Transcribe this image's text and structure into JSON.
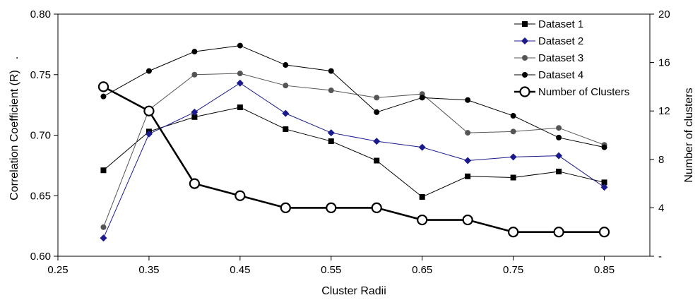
{
  "chart_data": {
    "type": "line",
    "xlabel": "Cluster Radii",
    "ylabel": "Correlation Coefficient (R)",
    "ylabel_suffix": ".",
    "y2label": "Number of clusters",
    "xlim": [
      0.25,
      0.9
    ],
    "ylim": [
      0.6,
      0.8
    ],
    "y2lim": [
      0,
      20
    ],
    "xticks": [
      "0.25",
      "0.35",
      "0.45",
      "0.55",
      "0.65",
      "0.75",
      "0.85"
    ],
    "yticks": [
      "0.60",
      "0.65",
      "0.70",
      "0.75",
      "0.80"
    ],
    "y2ticks": [
      "-",
      "4",
      "8",
      "12",
      "16",
      "20"
    ],
    "grid": false,
    "legend_position": "top-right",
    "x": [
      0.3,
      0.35,
      0.4,
      0.45,
      0.5,
      0.55,
      0.6,
      0.65,
      0.7,
      0.75,
      0.8,
      0.85
    ],
    "series": [
      {
        "name": "Dataset 1",
        "axis": "left",
        "marker": "square",
        "color": "#000000",
        "values": [
          0.671,
          0.703,
          0.715,
          0.723,
          0.705,
          0.695,
          0.679,
          0.649,
          0.666,
          0.665,
          0.67,
          0.661
        ]
      },
      {
        "name": "Dataset 2",
        "axis": "left",
        "marker": "diamond",
        "color": "#1a1a8c",
        "values": [
          0.615,
          0.701,
          0.719,
          0.743,
          0.718,
          0.702,
          0.695,
          0.69,
          0.679,
          0.682,
          0.683,
          0.657
        ]
      },
      {
        "name": "Dataset 3",
        "axis": "left",
        "marker": "circle-gray",
        "color": "#555555",
        "values": [
          0.624,
          0.721,
          0.75,
          0.751,
          0.741,
          0.737,
          0.731,
          0.734,
          0.702,
          0.703,
          0.706,
          0.692
        ]
      },
      {
        "name": "Dataset 4",
        "axis": "left",
        "marker": "circle",
        "color": "#000000",
        "values": [
          0.732,
          0.753,
          0.769,
          0.774,
          0.758,
          0.753,
          0.719,
          0.731,
          0.729,
          0.716,
          0.698,
          0.69
        ]
      },
      {
        "name": "Number of Clusters",
        "axis": "right",
        "marker": "open-circle",
        "color": "#000000",
        "values": [
          14,
          12,
          6,
          5,
          4,
          4,
          4,
          3,
          3,
          2,
          2,
          2
        ]
      }
    ]
  }
}
